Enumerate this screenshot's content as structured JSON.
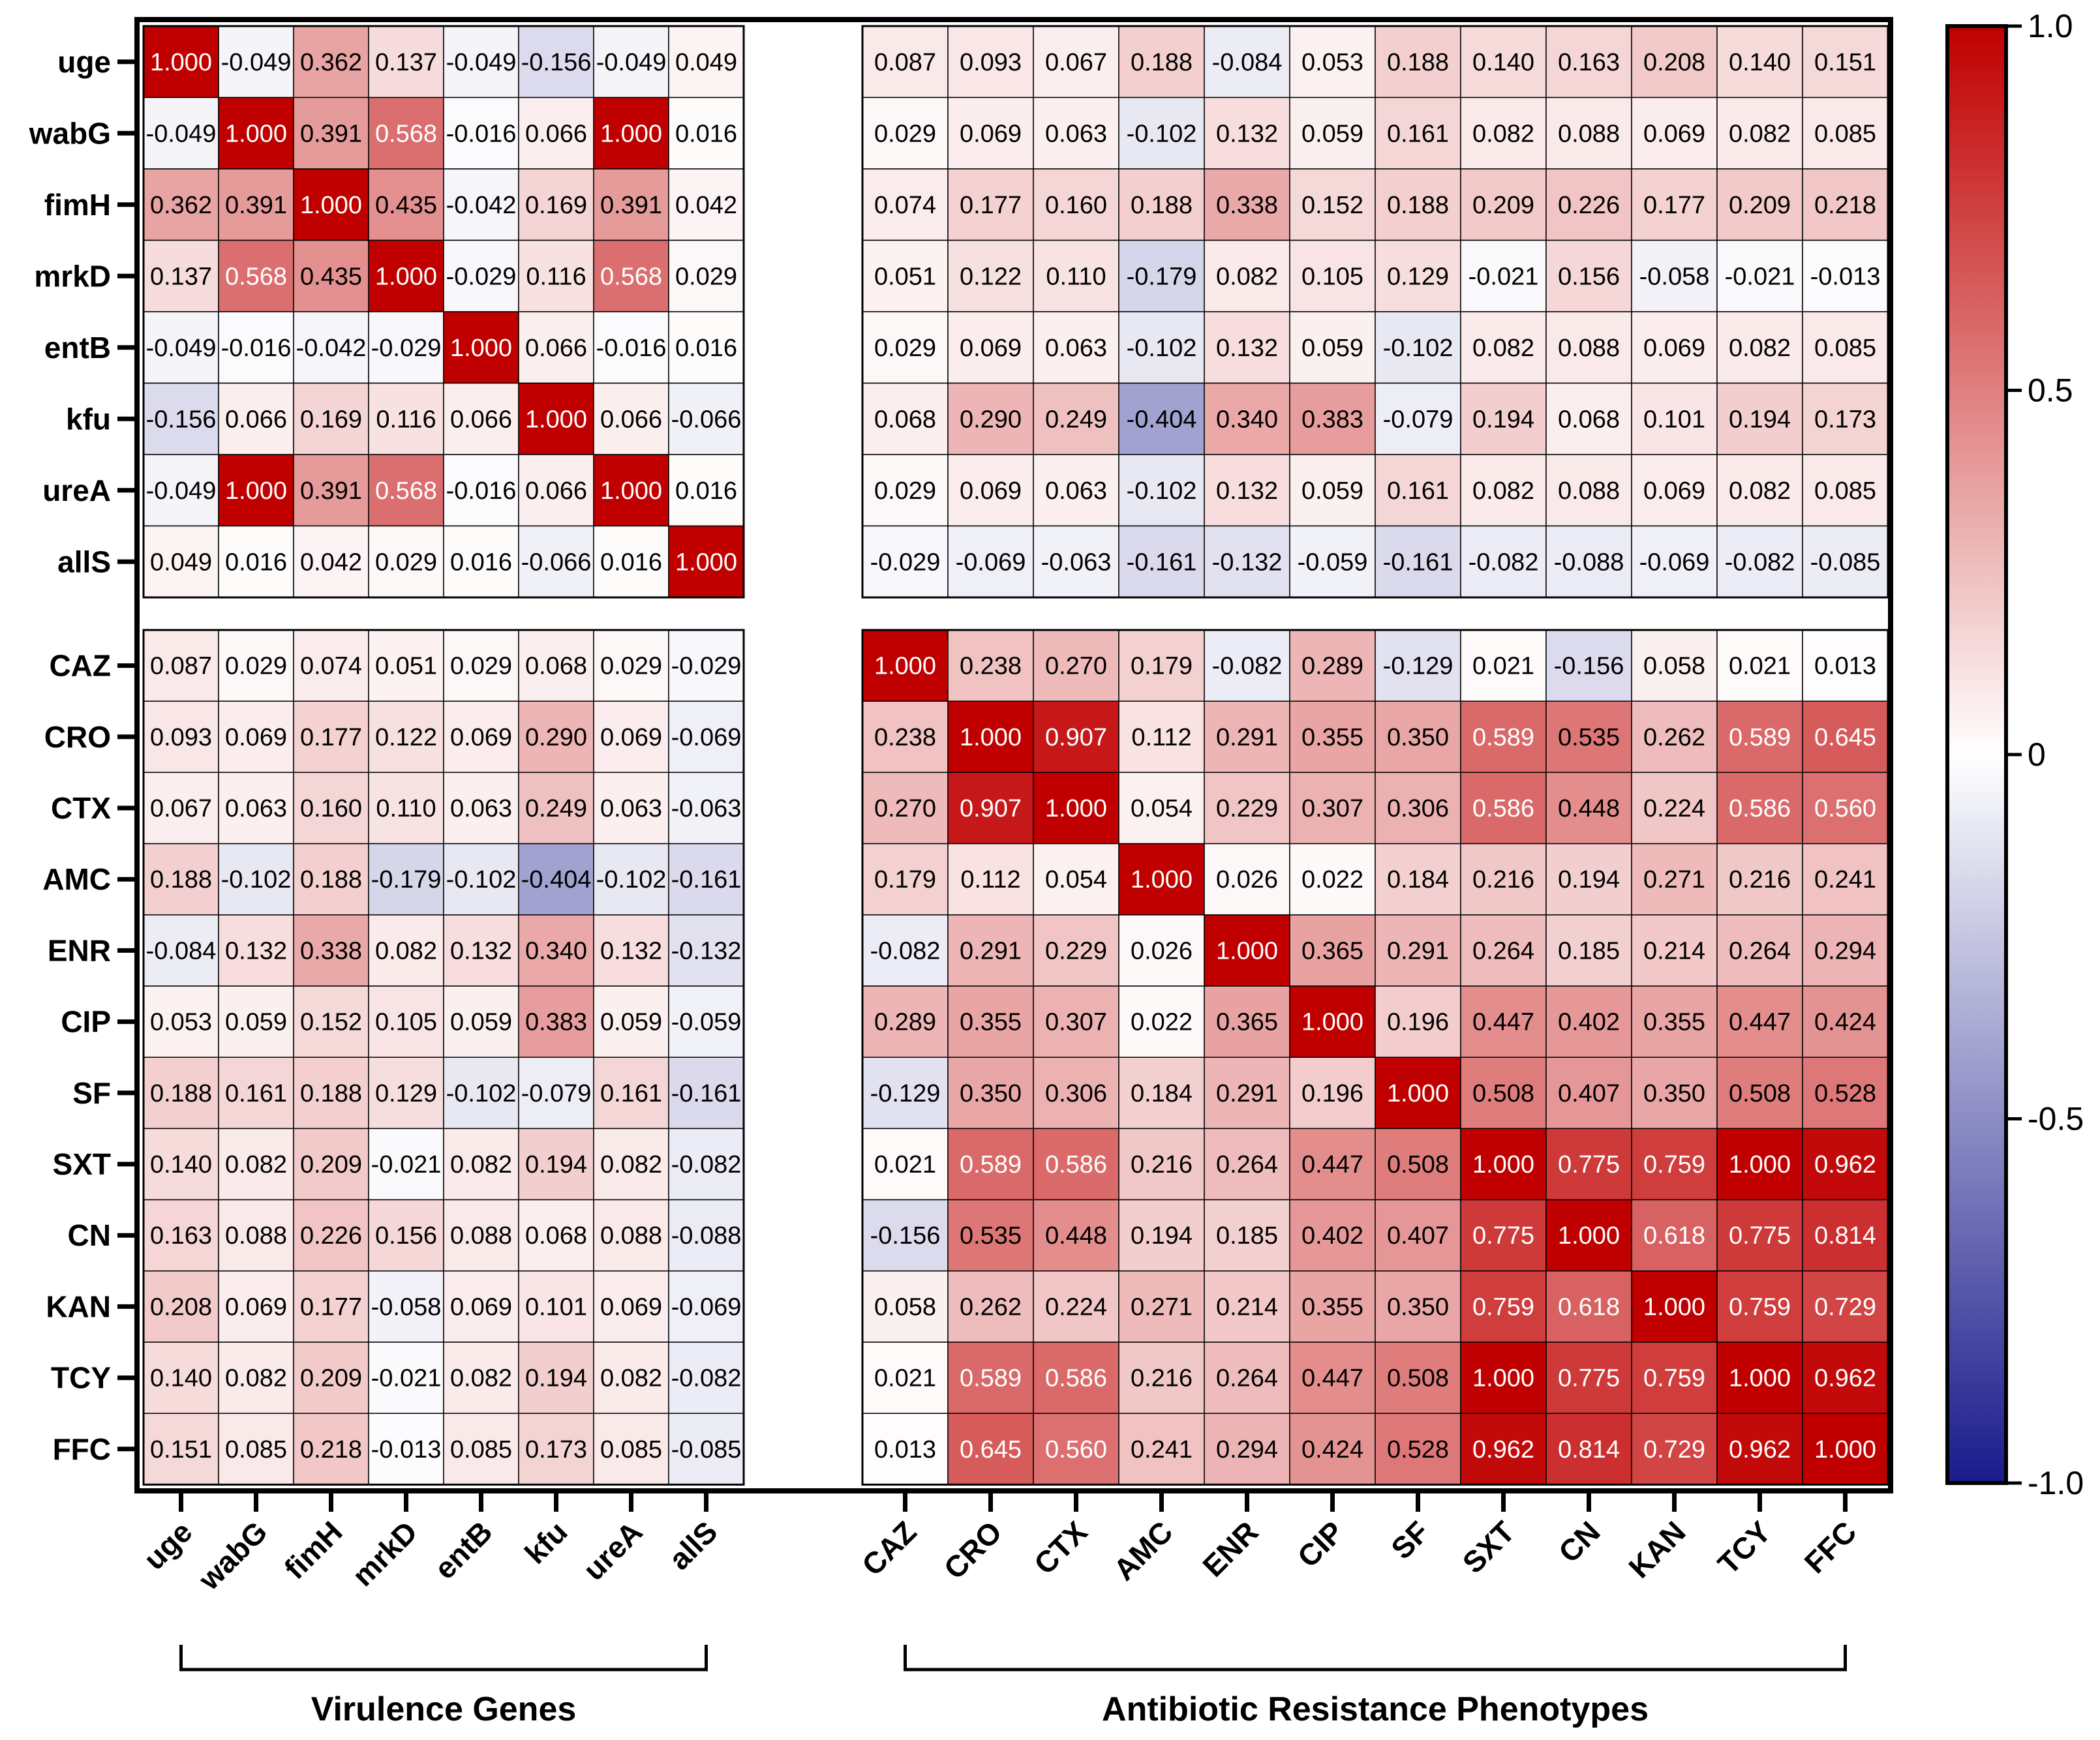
{
  "chart_data": {
    "type": "heatmap",
    "title": "",
    "row_labels": [
      "uge",
      "wabG",
      "fimH",
      "mrkD",
      "entB",
      "kfu",
      "ureA",
      "allS",
      "CAZ",
      "CRO",
      "CTX",
      "AMC",
      "ENR",
      "CIP",
      "SF",
      "SXT",
      "CN",
      "KAN",
      "TCY",
      "FFC"
    ],
    "col_labels": [
      "uge",
      "wabG",
      "fimH",
      "mrkD",
      "entB",
      "kfu",
      "ureA",
      "allS",
      "CAZ",
      "CRO",
      "CTX",
      "AMC",
      "ENR",
      "CIP",
      "SF",
      "SXT",
      "CN",
      "KAN",
      "TCY",
      "FFC"
    ],
    "groups": [
      {
        "label": "Virulence Genes",
        "count": 8
      },
      {
        "label": "Antibiotic Resistance Phenotypes",
        "count": 12
      }
    ],
    "values": [
      [
        "1.000",
        "-0.049",
        "0.362",
        "0.137",
        "-0.049",
        "-0.156",
        "-0.049",
        "0.049",
        "0.087",
        "0.093",
        "0.067",
        "0.188",
        "-0.084",
        "0.053",
        "0.188",
        "0.140",
        "0.163",
        "0.208",
        "0.140",
        "0.151"
      ],
      [
        "-0.049",
        "1.000",
        "0.391",
        "0.568",
        "-0.016",
        "0.066",
        "1.000",
        "0.016",
        "0.029",
        "0.069",
        "0.063",
        "-0.102",
        "0.132",
        "0.059",
        "0.161",
        "0.082",
        "0.088",
        "0.069",
        "0.082",
        "0.085"
      ],
      [
        "0.362",
        "0.391",
        "1.000",
        "0.435",
        "-0.042",
        "0.169",
        "0.391",
        "0.042",
        "0.074",
        "0.177",
        "0.160",
        "0.188",
        "0.338",
        "0.152",
        "0.188",
        "0.209",
        "0.226",
        "0.177",
        "0.209",
        "0.218"
      ],
      [
        "0.137",
        "0.568",
        "0.435",
        "1.000",
        "-0.029",
        "0.116",
        "0.568",
        "0.029",
        "0.051",
        "0.122",
        "0.110",
        "-0.179",
        "0.082",
        "0.105",
        "0.129",
        "-0.021",
        "0.156",
        "-0.058",
        "-0.021",
        "-0.013"
      ],
      [
        "-0.049",
        "-0.016",
        "-0.042",
        "-0.029",
        "1.000",
        "0.066",
        "-0.016",
        "0.016",
        "0.029",
        "0.069",
        "0.063",
        "-0.102",
        "0.132",
        "0.059",
        "-0.102",
        "0.082",
        "0.088",
        "0.069",
        "0.082",
        "0.085"
      ],
      [
        "-0.156",
        "0.066",
        "0.169",
        "0.116",
        "0.066",
        "1.000",
        "0.066",
        "-0.066",
        "0.068",
        "0.290",
        "0.249",
        "-0.404",
        "0.340",
        "0.383",
        "-0.079",
        "0.194",
        "0.068",
        "0.101",
        "0.194",
        "0.173"
      ],
      [
        "-0.049",
        "1.000",
        "0.391",
        "0.568",
        "-0.016",
        "0.066",
        "1.000",
        "0.016",
        "0.029",
        "0.069",
        "0.063",
        "-0.102",
        "0.132",
        "0.059",
        "0.161",
        "0.082",
        "0.088",
        "0.069",
        "0.082",
        "0.085"
      ],
      [
        "0.049",
        "0.016",
        "0.042",
        "0.029",
        "0.016",
        "-0.066",
        "0.016",
        "1.000",
        "-0.029",
        "-0.069",
        "-0.063",
        "-0.161",
        "-0.132",
        "-0.059",
        "-0.161",
        "-0.082",
        "-0.088",
        "-0.069",
        "-0.082",
        "-0.085"
      ],
      [
        "0.087",
        "0.029",
        "0.074",
        "0.051",
        "0.029",
        "0.068",
        "0.029",
        "-0.029",
        "1.000",
        "0.238",
        "0.270",
        "0.179",
        "-0.082",
        "0.289",
        "-0.129",
        "0.021",
        "-0.156",
        "0.058",
        "0.021",
        "0.013"
      ],
      [
        "0.093",
        "0.069",
        "0.177",
        "0.122",
        "0.069",
        "0.290",
        "0.069",
        "-0.069",
        "0.238",
        "1.000",
        "0.907",
        "0.112",
        "0.291",
        "0.355",
        "0.350",
        "0.589",
        "0.535",
        "0.262",
        "0.589",
        "0.645"
      ],
      [
        "0.067",
        "0.063",
        "0.160",
        "0.110",
        "0.063",
        "0.249",
        "0.063",
        "-0.063",
        "0.270",
        "0.907",
        "1.000",
        "0.054",
        "0.229",
        "0.307",
        "0.306",
        "0.586",
        "0.448",
        "0.224",
        "0.586",
        "0.560"
      ],
      [
        "0.188",
        "-0.102",
        "0.188",
        "-0.179",
        "-0.102",
        "-0.404",
        "-0.102",
        "-0.161",
        "0.179",
        "0.112",
        "0.054",
        "1.000",
        "0.026",
        "0.022",
        "0.184",
        "0.216",
        "0.194",
        "0.271",
        "0.216",
        "0.241"
      ],
      [
        "-0.084",
        "0.132",
        "0.338",
        "0.082",
        "0.132",
        "0.340",
        "0.132",
        "-0.132",
        "-0.082",
        "0.291",
        "0.229",
        "0.026",
        "1.000",
        "0.365",
        "0.291",
        "0.264",
        "0.185",
        "0.214",
        "0.264",
        "0.294"
      ],
      [
        "0.053",
        "0.059",
        "0.152",
        "0.105",
        "0.059",
        "0.383",
        "0.059",
        "-0.059",
        "0.289",
        "0.355",
        "0.307",
        "0.022",
        "0.365",
        "1.000",
        "0.196",
        "0.447",
        "0.402",
        "0.355",
        "0.447",
        "0.424"
      ],
      [
        "0.188",
        "0.161",
        "0.188",
        "0.129",
        "-0.102",
        "-0.079",
        "0.161",
        "-0.161",
        "-0.129",
        "0.350",
        "0.306",
        "0.184",
        "0.291",
        "0.196",
        "1.000",
        "0.508",
        "0.407",
        "0.350",
        "0.508",
        "0.528"
      ],
      [
        "0.140",
        "0.082",
        "0.209",
        "-0.021",
        "0.082",
        "0.194",
        "0.082",
        "-0.082",
        "0.021",
        "0.589",
        "0.586",
        "0.216",
        "0.264",
        "0.447",
        "0.508",
        "1.000",
        "0.775",
        "0.759",
        "1.000",
        "0.962"
      ],
      [
        "0.163",
        "0.088",
        "0.226",
        "0.156",
        "0.088",
        "0.068",
        "0.088",
        "-0.088",
        "-0.156",
        "0.535",
        "0.448",
        "0.194",
        "0.185",
        "0.402",
        "0.407",
        "0.775",
        "1.000",
        "0.618",
        "0.775",
        "0.814"
      ],
      [
        "0.208",
        "0.069",
        "0.177",
        "-0.058",
        "0.069",
        "0.101",
        "0.069",
        "-0.069",
        "0.058",
        "0.262",
        "0.224",
        "0.271",
        "0.214",
        "0.355",
        "0.350",
        "0.759",
        "0.618",
        "1.000",
        "0.759",
        "0.729"
      ],
      [
        "0.140",
        "0.082",
        "0.209",
        "-0.021",
        "0.082",
        "0.194",
        "0.082",
        "-0.082",
        "0.021",
        "0.589",
        "0.586",
        "0.216",
        "0.264",
        "0.447",
        "0.508",
        "1.000",
        "0.775",
        "0.759",
        "1.000",
        "0.962"
      ],
      [
        "0.151",
        "0.085",
        "0.218",
        "-0.013",
        "0.085",
        "0.173",
        "0.085",
        "-0.085",
        "0.013",
        "0.645",
        "0.560",
        "0.241",
        "0.294",
        "0.424",
        "0.528",
        "0.962",
        "0.814",
        "0.729",
        "0.962",
        "1.000"
      ]
    ],
    "colorbar": {
      "range": [
        -1.0,
        1.0
      ],
      "tick_values": [
        1.0,
        0.5,
        0,
        -0.5,
        -1.0
      ],
      "tick_labels": [
        "1.0",
        "0.5",
        "0",
        "-0.5",
        "-1.0"
      ],
      "colors": {
        "low": "#1a1a8c",
        "mid": "#ffffff",
        "high": "#c00000"
      }
    }
  }
}
